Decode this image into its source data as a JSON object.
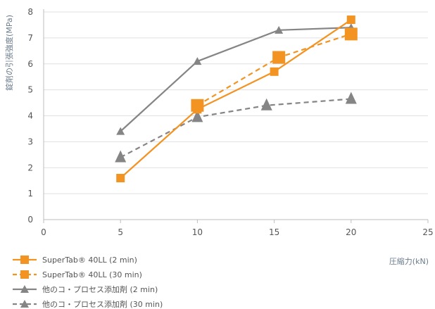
{
  "chart_data": {
    "type": "line",
    "xlabel": "圧縮力(kN)",
    "ylabel": "錠剤の引張強度(MPa)",
    "xlim": [
      0,
      25
    ],
    "ylim": [
      0,
      8
    ],
    "x_ticks": [
      "0",
      "5",
      "10",
      "15",
      "20",
      "25"
    ],
    "y_ticks": [
      "0",
      "1",
      "2",
      "3",
      "4",
      "5",
      "6",
      "7",
      "8"
    ],
    "grid": "horizontal",
    "legend_position": "bottom-left",
    "series": [
      {
        "name": "SuperTab® 40LL (2 min)",
        "color": "#F39322",
        "dash": "solid",
        "marker": "square-small",
        "points": [
          [
            5,
            1.6
          ],
          [
            10,
            4.25
          ],
          [
            15,
            5.7
          ],
          [
            20,
            7.7
          ]
        ]
      },
      {
        "name": "SuperTab® 40LL (30 min)",
        "color": "#F39322",
        "dash": "dashed",
        "marker": "square-large",
        "points": [
          [
            10,
            4.4
          ],
          [
            15.3,
            6.25
          ],
          [
            20,
            7.15
          ]
        ]
      },
      {
        "name": "他のコ・プロセス添加剤 (2 min)",
        "color": "#858585",
        "dash": "solid",
        "marker": "triangle-small",
        "points": [
          [
            5,
            3.4
          ],
          [
            10,
            6.1
          ],
          [
            15.3,
            7.3
          ],
          [
            20,
            7.4
          ]
        ]
      },
      {
        "name": "他のコ・プロセス添加剤 (30 min)",
        "color": "#858585",
        "dash": "dashed",
        "marker": "triangle-large",
        "points": [
          [
            5,
            2.4
          ],
          [
            10,
            3.95
          ],
          [
            14.5,
            4.4
          ],
          [
            20,
            4.65
          ]
        ]
      }
    ]
  }
}
